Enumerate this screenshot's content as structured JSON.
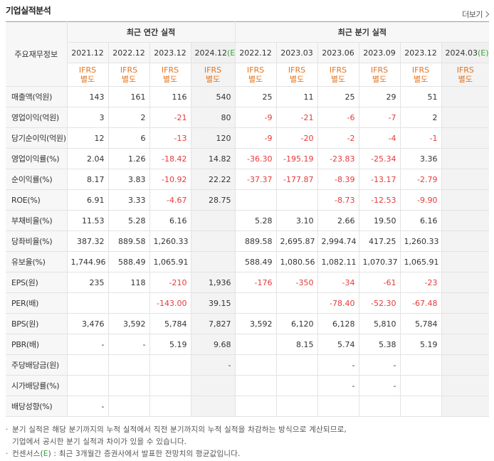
{
  "header": {
    "title": "기업실적분석",
    "more_label": "더보기"
  },
  "table": {
    "corner_label": "주요재무정보",
    "annual_group": "최근 연간 실적",
    "quarter_group": "최근 분기 실적",
    "annual_dates": [
      "2021.12",
      "2022.12",
      "2023.12",
      "2024.12"
    ],
    "annual_est_mark": "(E)",
    "quarter_dates": [
      "2022.12",
      "2023.03",
      "2023.06",
      "2023.09",
      "2023.12",
      "2024.03"
    ],
    "quarter_est_mark": "(E)",
    "ifrs_line1": "IFRS",
    "ifrs_line2": "별도",
    "rows": [
      {
        "label": "매출액(억원)",
        "annual": [
          "143",
          "161",
          "116",
          "540"
        ],
        "quarter": [
          "25",
          "11",
          "25",
          "29",
          "51",
          ""
        ]
      },
      {
        "label": "영업이익(억원)",
        "annual": [
          "3",
          "2",
          "-21",
          "80"
        ],
        "quarter": [
          "-9",
          "-21",
          "-6",
          "-7",
          "2",
          ""
        ]
      },
      {
        "label": "당기순이익(억원)",
        "annual": [
          "12",
          "6",
          "-13",
          "120"
        ],
        "quarter": [
          "-9",
          "-20",
          "-2",
          "-4",
          "-1",
          ""
        ]
      },
      {
        "label": "영업이익률(%)",
        "annual": [
          "2.04",
          "1.26",
          "-18.42",
          "14.82"
        ],
        "quarter": [
          "-36.30",
          "-195.19",
          "-23.83",
          "-25.34",
          "3.36",
          ""
        ]
      },
      {
        "label": "순이익률(%)",
        "annual": [
          "8.17",
          "3.83",
          "-10.92",
          "22.22"
        ],
        "quarter": [
          "-37.37",
          "-177.87",
          "-8.39",
          "-13.17",
          "-2.79",
          ""
        ]
      },
      {
        "label": "ROE(%)",
        "annual": [
          "6.91",
          "3.33",
          "-4.67",
          "28.75"
        ],
        "quarter": [
          "",
          "",
          "-8.73",
          "-12.53",
          "-9.90",
          ""
        ]
      },
      {
        "label": "부채비율(%)",
        "annual": [
          "11.53",
          "5.28",
          "6.16",
          ""
        ],
        "quarter": [
          "5.28",
          "3.10",
          "2.66",
          "19.50",
          "6.16",
          ""
        ]
      },
      {
        "label": "당좌비율(%)",
        "annual": [
          "387.32",
          "889.58",
          "1,260.33",
          ""
        ],
        "quarter": [
          "889.58",
          "2,695.87",
          "2,994.74",
          "417.25",
          "1,260.33",
          ""
        ]
      },
      {
        "label": "유보율(%)",
        "annual": [
          "1,744.96",
          "588.49",
          "1,065.91",
          ""
        ],
        "quarter": [
          "588.49",
          "1,080.56",
          "1,082.11",
          "1,070.37",
          "1,065.91",
          ""
        ]
      },
      {
        "label": "EPS(원)",
        "annual": [
          "235",
          "118",
          "-210",
          "1,936"
        ],
        "quarter": [
          "-176",
          "-350",
          "-34",
          "-61",
          "-23",
          ""
        ]
      },
      {
        "label": "PER(배)",
        "annual": [
          "",
          "",
          "-143.00",
          "39.15"
        ],
        "quarter": [
          "",
          "",
          "-78.40",
          "-52.30",
          "-67.48",
          ""
        ]
      },
      {
        "label": "BPS(원)",
        "annual": [
          "3,476",
          "3,592",
          "5,784",
          "7,827"
        ],
        "quarter": [
          "3,592",
          "6,120",
          "6,128",
          "5,810",
          "5,784",
          ""
        ]
      },
      {
        "label": "PBR(배)",
        "annual": [
          "-",
          "-",
          "5.19",
          "9.68"
        ],
        "quarter": [
          "",
          "8.15",
          "5.74",
          "5.38",
          "5.19",
          ""
        ]
      },
      {
        "label": "주당배당금(원)",
        "annual": [
          "",
          "",
          "",
          "-"
        ],
        "quarter": [
          "",
          "",
          "-",
          "-",
          "",
          ""
        ]
      },
      {
        "label": "시가배당률(%)",
        "annual": [
          "",
          "",
          "",
          ""
        ],
        "quarter": [
          "",
          "",
          "-",
          "-",
          "",
          ""
        ]
      },
      {
        "label": "배당성향(%)",
        "annual": [
          "-",
          "",
          "",
          ""
        ],
        "quarter": [
          "",
          "",
          "",
          "",
          "",
          ""
        ]
      }
    ]
  },
  "notes": {
    "line1": "분기 실적은 해당 분기까지의 누적 실적에서 직전 분기까지의 누적 실적을 차감하는 방식으로 계산되므로,",
    "line2": "기업에서 공시한 분기 실적과 차이가 있을 수 있습니다.",
    "line3_prefix": "컨센서스(",
    "line3_mark": "E",
    "line3_suffix": ") : 최근 3개월간 증권사에서 발표한 전망치의 평균값입니다."
  }
}
